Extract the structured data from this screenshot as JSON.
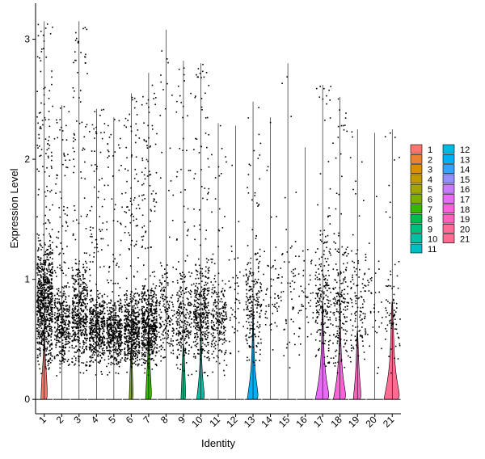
{
  "chart_data": {
    "type": "violin",
    "xlabel": "Identity",
    "ylabel": "Expression Level",
    "ylim": [
      -0.12,
      3.3
    ],
    "yticks": [
      0,
      1,
      2,
      3
    ],
    "legend_position": "right",
    "categories": [
      "1",
      "2",
      "3",
      "4",
      "5",
      "6",
      "7",
      "8",
      "9",
      "10",
      "11",
      "12",
      "13",
      "14",
      "15",
      "16",
      "17",
      "18",
      "19",
      "20",
      "21"
    ],
    "colors": [
      "#F8766D",
      "#EA8331",
      "#D89000",
      "#C09B00",
      "#A3A500",
      "#7CAE00",
      "#39B600",
      "#00BB4E",
      "#00BF7D",
      "#00C1A3",
      "#00BFC4",
      "#00BAE0",
      "#00B0F6",
      "#35A2FF",
      "#9590FF",
      "#C77CFF",
      "#E76BF3",
      "#FA62DB",
      "#FF62BC",
      "#FF6A98",
      "#FF6C91"
    ],
    "series": [
      {
        "name": "1",
        "max": 3.15,
        "density": 0.95,
        "dot_level": 0.85,
        "violin": [
          0.16,
          0.12,
          0.04,
          0.02
        ]
      },
      {
        "name": "2",
        "max": 2.45,
        "density": 0.45,
        "dot_level": 0.55,
        "violin": null
      },
      {
        "name": "3",
        "max": 3.15,
        "density": 0.55,
        "dot_level": 0.7,
        "violin": null
      },
      {
        "name": "4",
        "max": 2.42,
        "density": 0.55,
        "dot_level": 0.5,
        "violin": null
      },
      {
        "name": "5",
        "max": 2.35,
        "density": 0.5,
        "dot_level": 0.45,
        "violin": null
      },
      {
        "name": "6",
        "max": 2.55,
        "density": 0.6,
        "dot_level": 0.5,
        "violin": [
          0.1,
          0.06,
          0.02
        ]
      },
      {
        "name": "7",
        "max": 2.72,
        "density": 0.65,
        "dot_level": 0.55,
        "violin": [
          0.15,
          0.1,
          0.04,
          0.02
        ]
      },
      {
        "name": "8",
        "max": 3.08,
        "density": 0.2,
        "dot_level": 0.7,
        "violin": null
      },
      {
        "name": "9",
        "max": 2.82,
        "density": 0.3,
        "dot_level": 0.65,
        "violin": [
          0.12,
          0.07,
          0.03
        ]
      },
      {
        "name": "10",
        "max": 2.8,
        "density": 0.45,
        "dot_level": 0.7,
        "violin": [
          0.2,
          0.09,
          0.04,
          0.02,
          0.01
        ]
      },
      {
        "name": "11",
        "max": 2.3,
        "density": 0.25,
        "dot_level": 0.6,
        "violin": null
      },
      {
        "name": "12",
        "max": 2.28,
        "density": 0.05,
        "dot_level": 0.8,
        "violin": null
      },
      {
        "name": "13",
        "max": 2.48,
        "density": 0.25,
        "dot_level": 0.8,
        "violin": [
          0.28,
          0.15,
          0.07,
          0.04,
          0.02,
          0.01
        ]
      },
      {
        "name": "14",
        "max": 2.35,
        "density": 0.06,
        "dot_level": 0.8,
        "violin": null
      },
      {
        "name": "15",
        "max": 2.8,
        "density": 0.06,
        "dot_level": 0.9,
        "violin": null
      },
      {
        "name": "16",
        "max": 2.1,
        "density": 0.05,
        "dot_level": 0.8,
        "violin": null
      },
      {
        "name": "17",
        "max": 2.62,
        "density": 0.25,
        "dot_level": 0.9,
        "violin": [
          0.35,
          0.18,
          0.09,
          0.05,
          0.03,
          0.02
        ]
      },
      {
        "name": "18",
        "max": 2.52,
        "density": 0.22,
        "dot_level": 0.85,
        "violin": [
          0.32,
          0.16,
          0.08,
          0.04,
          0.02,
          0.01
        ]
      },
      {
        "name": "19",
        "max": 2.25,
        "density": 0.14,
        "dot_level": 0.75,
        "violin": [
          0.2,
          0.1,
          0.05,
          0.02
        ]
      },
      {
        "name": "20",
        "max": 2.22,
        "density": 0.04,
        "dot_level": 0.8,
        "violin": null
      },
      {
        "name": "21",
        "max": 2.25,
        "density": 0.08,
        "dot_level": 0.7,
        "violin": [
          0.4,
          0.22,
          0.12,
          0.08,
          0.05,
          0.03
        ]
      }
    ]
  }
}
